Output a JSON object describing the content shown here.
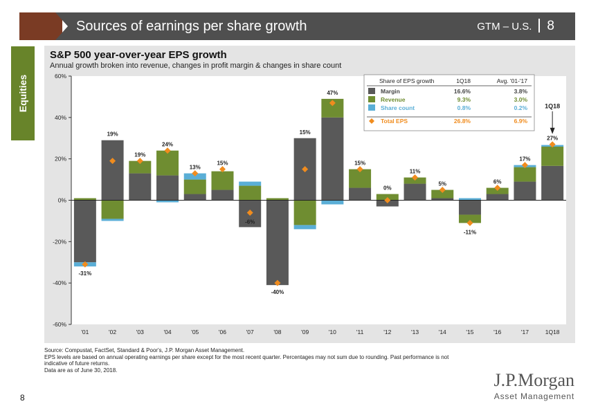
{
  "header": {
    "title": "Sources of earnings per share growth",
    "section": "GTM – U.S.",
    "page": "8"
  },
  "side_tab": {
    "label": "Equities"
  },
  "colors": {
    "margin": "#595959",
    "revenue": "#6f8d31",
    "share_count": "#5aaed6",
    "total_eps": "#f08c1e",
    "brand_brown": "#7a3b24",
    "brand_green": "#68842a"
  },
  "chart_data": {
    "type": "bar",
    "stacked": true,
    "title": "S&P 500 year-over-year EPS growth",
    "subtitle": "Annual growth broken into revenue, changes in profit margin & changes in share count",
    "categories": [
      "'01",
      "'02",
      "'03",
      "'04",
      "'05",
      "'06",
      "'07",
      "'08",
      "'09",
      "'10",
      "'11",
      "'12",
      "'13",
      "'14",
      "'15",
      "'16",
      "'17",
      "1Q18"
    ],
    "series": [
      {
        "name": "Margin",
        "key": "margin",
        "values": [
          -30,
          29,
          13,
          12,
          3,
          5,
          -13,
          -41,
          30,
          40,
          6,
          -3,
          8,
          1,
          -7,
          3,
          9,
          16.6
        ]
      },
      {
        "name": "Revenue",
        "key": "revenue",
        "values": [
          1,
          -9,
          6,
          12,
          7,
          9,
          7,
          1,
          -12,
          9,
          9,
          3,
          3,
          4,
          -4,
          3,
          7,
          9.3
        ]
      },
      {
        "name": "Share count",
        "key": "share_count",
        "values": [
          -2,
          -1,
          0,
          -1,
          3,
          0,
          2,
          0,
          -2,
          -2,
          0,
          0,
          0,
          0,
          1,
          0,
          1,
          0.8
        ]
      }
    ],
    "total_eps": {
      "name": "Total EPS",
      "values": [
        -31,
        19,
        19,
        24,
        13,
        15,
        -6,
        -40,
        15,
        47,
        15,
        0,
        11,
        5,
        -11,
        6,
        17,
        27
      ],
      "labels": [
        "-31%",
        "19%",
        "19%",
        "24%",
        "13%",
        "15%",
        "-6%",
        "-40%",
        "15%",
        "47%",
        "15%",
        "0%",
        "11%",
        "5%",
        "-11%",
        "6%",
        "17%",
        "27%"
      ]
    },
    "ylim": [
      -60,
      60
    ],
    "yticks": [
      -60,
      -40,
      -20,
      0,
      20,
      40,
      60
    ],
    "ytick_labels": [
      "-60%",
      "-40%",
      "-20%",
      "0%",
      "20%",
      "40%",
      "60%"
    ],
    "callout": {
      "label": "1Q18"
    },
    "legend": {
      "position": "top-right",
      "header": [
        "Share of EPS growth",
        "1Q18",
        "Avg. '01-'17"
      ],
      "rows": [
        {
          "name": "Margin",
          "key": "margin",
          "q": "16.6%",
          "avg": "3.8%"
        },
        {
          "name": "Revenue",
          "key": "revenue",
          "q": "9.3%",
          "avg": "3.0%"
        },
        {
          "name": "Share count",
          "key": "share_count",
          "q": "0.8%",
          "avg": "0.2%"
        },
        {
          "name": "Total EPS",
          "key": "total_eps",
          "q": "26.8%",
          "avg": "6.9%"
        }
      ]
    }
  },
  "footnotes": {
    "source": "Source: Compustat, FactSet, Standard & Poor's, J.P. Morgan Asset Management.",
    "note": "EPS levels are based on annual operating earnings per share except for the most recent quarter. Percentages may not sum due to rounding. Past performance is not indicative of future returns.",
    "date": "Data are as of June 30, 2018."
  },
  "footer": {
    "page_number": "8",
    "logo_main": "J.P.Morgan",
    "logo_sub": "Asset Management"
  }
}
